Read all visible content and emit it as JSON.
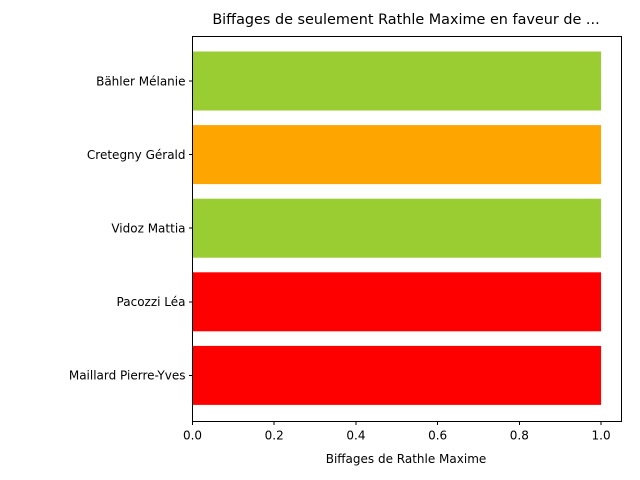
{
  "chart_data": {
    "type": "bar",
    "orientation": "horizontal",
    "title": "Biffages de seulement Rathle Maxime en faveur de ...",
    "xlabel": "Biffages de Rathle Maxime",
    "ylabel": "",
    "xlim": [
      0,
      1.05
    ],
    "xticks": [
      "0.0",
      "0.2",
      "0.4",
      "0.6",
      "0.8",
      "1.0"
    ],
    "grid": false,
    "legend": "none",
    "categories": [
      "Bähler Mélanie",
      "Cretegny Gérald",
      "Vidoz Mattia",
      "Pacozzi Léa",
      "Maillard Pierre-Yves"
    ],
    "values": [
      1,
      1,
      1,
      1,
      1
    ],
    "colors": [
      "#9acd32",
      "#ffa500",
      "#9acd32",
      "#ff0000",
      "#ff0000"
    ]
  }
}
